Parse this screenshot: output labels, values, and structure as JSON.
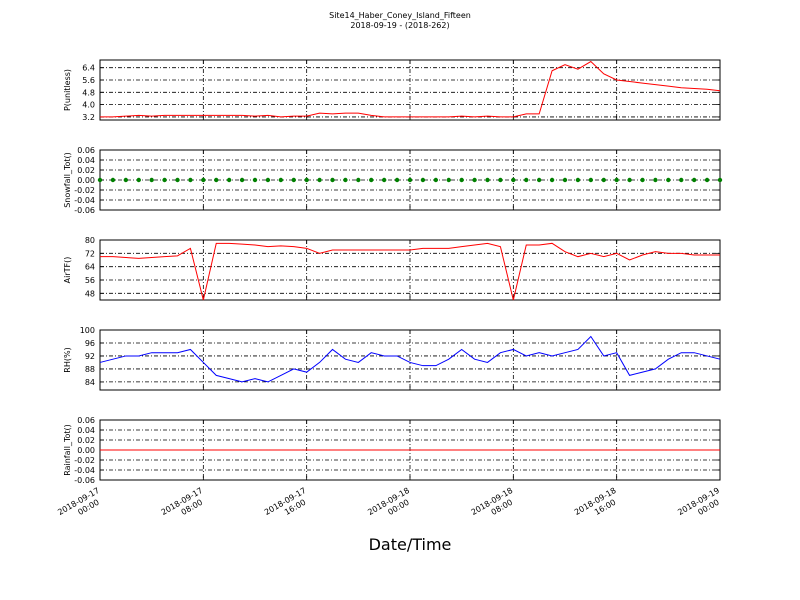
{
  "title": "Site14_Haber_Coney_Island_Fifteen",
  "subtitle": "2018-09-19 - (2018-262)",
  "xlabel": "Date/Time",
  "xlim": [
    "2018-09-17 00:00",
    "2018-09-19 00:00"
  ],
  "xticks": [
    "2018-09-17 00:00",
    "2018-09-17 08:00",
    "2018-09-17 16:00",
    "2018-09-18 00:00",
    "2018-09-18 08:00",
    "2018-09-18 16:00",
    "2018-09-19 00:00"
  ],
  "x": [
    "2018-09-17 00:00",
    "2018-09-17 01:00",
    "2018-09-17 02:00",
    "2018-09-17 03:00",
    "2018-09-17 04:00",
    "2018-09-17 05:00",
    "2018-09-17 06:00",
    "2018-09-17 07:00",
    "2018-09-17 08:00",
    "2018-09-17 09:00",
    "2018-09-17 10:00",
    "2018-09-17 11:00",
    "2018-09-17 12:00",
    "2018-09-17 13:00",
    "2018-09-17 14:00",
    "2018-09-17 15:00",
    "2018-09-17 16:00",
    "2018-09-17 17:00",
    "2018-09-17 18:00",
    "2018-09-17 19:00",
    "2018-09-17 20:00",
    "2018-09-17 21:00",
    "2018-09-17 22:00",
    "2018-09-17 23:00",
    "2018-09-18 00:00",
    "2018-09-18 01:00",
    "2018-09-18 02:00",
    "2018-09-18 03:00",
    "2018-09-18 04:00",
    "2018-09-18 05:00",
    "2018-09-18 06:00",
    "2018-09-18 07:00",
    "2018-09-18 08:00",
    "2018-09-18 09:00",
    "2018-09-18 10:00",
    "2018-09-18 11:00",
    "2018-09-18 12:00",
    "2018-09-18 13:00",
    "2018-09-18 14:00",
    "2018-09-18 15:00",
    "2018-09-18 16:00",
    "2018-09-18 17:00",
    "2018-09-18 18:00",
    "2018-09-18 19:00",
    "2018-09-18 20:00",
    "2018-09-18 21:00",
    "2018-09-18 22:00",
    "2018-09-18 23:00",
    "2018-09-19 00:00"
  ],
  "chart_data": [
    {
      "type": "line",
      "ylabel": "P(unitless)",
      "ylim": [
        3.0,
        6.9
      ],
      "grid": true,
      "yticks": [
        3.2,
        {
          "value": 4.0,
          "label": "4.0"
        },
        4.8,
        5.6,
        6.4
      ],
      "series": [
        {
          "name": "P",
          "color": "#ff0000",
          "values": [
            3.2,
            3.2,
            3.25,
            3.3,
            3.25,
            3.3,
            3.3,
            3.3,
            3.3,
            3.3,
            3.3,
            3.3,
            3.25,
            3.3,
            3.2,
            3.25,
            3.25,
            3.45,
            3.4,
            3.45,
            3.45,
            3.3,
            3.2,
            3.2,
            3.2,
            3.2,
            3.2,
            3.2,
            3.25,
            3.2,
            3.25,
            3.2,
            3.2,
            3.4,
            3.4,
            6.2,
            6.6,
            6.3,
            6.8,
            6.0,
            5.6,
            5.5,
            5.4,
            5.3,
            5.2,
            5.1,
            5.05,
            5.0,
            4.9
          ]
        }
      ]
    },
    {
      "type": "scatter",
      "ylabel": "Snowfall_Tot()",
      "ylim": [
        -0.06,
        0.06
      ],
      "grid": true,
      "yticks": [
        {
          "value": -0.06,
          "label": "-0.06"
        },
        {
          "value": -0.04,
          "label": "-0.04"
        },
        {
          "value": -0.02,
          "label": "-0.02"
        },
        {
          "value": 0,
          "label": "0.00"
        },
        0.02,
        0.04,
        0.06
      ],
      "series": [
        {
          "name": "Snowfall_Tot",
          "color": "#008000",
          "values": [
            0,
            0,
            0,
            0,
            0,
            0,
            0,
            0,
            0,
            0,
            0,
            0,
            0,
            0,
            0,
            0,
            0,
            0,
            0,
            0,
            0,
            0,
            0,
            0,
            0,
            0,
            0,
            0,
            0,
            0,
            0,
            0,
            0,
            0,
            0,
            0,
            0,
            0,
            0,
            0,
            0,
            0,
            0,
            0,
            0,
            0,
            0,
            0,
            0
          ]
        }
      ]
    },
    {
      "type": "line",
      "ylabel": "AirTF()",
      "ylim": [
        44,
        80
      ],
      "grid": true,
      "yticks": [
        48,
        56,
        64,
        72,
        80
      ],
      "series": [
        {
          "name": "AirTF",
          "color": "#ff0000",
          "values": [
            70,
            70,
            69.5,
            69,
            69.5,
            70,
            70.5,
            75,
            44,
            78,
            78,
            77.5,
            77,
            76,
            76.5,
            76,
            75,
            72,
            74,
            74,
            74,
            74,
            74,
            74,
            74,
            75,
            75,
            75,
            76,
            77,
            78,
            76,
            44,
            77,
            77,
            78,
            73,
            70,
            72,
            70,
            72,
            68,
            71,
            73,
            72,
            72,
            71,
            71,
            71
          ]
        }
      ]
    },
    {
      "type": "line",
      "ylabel": "RH(%)",
      "ylim": [
        81.5,
        100
      ],
      "grid": true,
      "yticks": [
        84,
        88,
        92,
        96,
        100
      ],
      "series": [
        {
          "name": "RH",
          "color": "#0000ff",
          "values": [
            90,
            91,
            92,
            92,
            93,
            93,
            93,
            94,
            90,
            86,
            85,
            84,
            85,
            84,
            86,
            88,
            87,
            90,
            94,
            91,
            90,
            93,
            92,
            92,
            90,
            89,
            89,
            91,
            94,
            91,
            90,
            93,
            94,
            92,
            93,
            92,
            93,
            94,
            98,
            92,
            93,
            86,
            87,
            88,
            91,
            93,
            93,
            92,
            91
          ]
        }
      ]
    },
    {
      "type": "line",
      "ylabel": "Rainfall_Tot()",
      "ylim": [
        -0.06,
        0.06
      ],
      "grid": true,
      "yticks": [
        {
          "value": -0.06,
          "label": "-0.06"
        },
        {
          "value": -0.04,
          "label": "-0.04"
        },
        {
          "value": -0.02,
          "label": "-0.02"
        },
        {
          "value": 0,
          "label": "0.00"
        },
        0.02,
        0.04,
        0.06
      ],
      "series": [
        {
          "name": "Rainfall_Tot",
          "color": "#ff0000",
          "values": [
            0,
            0,
            0,
            0,
            0,
            0,
            0,
            0,
            0,
            0,
            0,
            0,
            0,
            0,
            0,
            0,
            0,
            0,
            0,
            0,
            0,
            0,
            0,
            0,
            0,
            0,
            0,
            0,
            0,
            0,
            0,
            0,
            0,
            0,
            0,
            0,
            0,
            0,
            0,
            0,
            0,
            0,
            0,
            0,
            0,
            0,
            0,
            0,
            0
          ]
        }
      ]
    }
  ]
}
